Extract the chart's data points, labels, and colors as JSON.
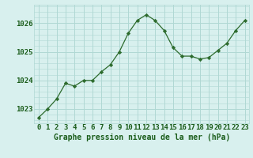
{
  "x": [
    0,
    1,
    2,
    3,
    4,
    5,
    6,
    7,
    8,
    9,
    10,
    11,
    12,
    13,
    14,
    15,
    16,
    17,
    18,
    19,
    20,
    21,
    22,
    23
  ],
  "y": [
    1022.7,
    1023.0,
    1023.35,
    1023.9,
    1023.8,
    1024.0,
    1024.0,
    1024.3,
    1024.55,
    1025.0,
    1025.65,
    1026.1,
    1026.3,
    1026.1,
    1025.75,
    1025.15,
    1024.85,
    1024.85,
    1024.75,
    1024.8,
    1025.05,
    1025.3,
    1025.75,
    1026.1
  ],
  "line_color": "#2d6b2d",
  "marker": "D",
  "marker_size": 2.2,
  "bg_color": "#d8f0ee",
  "grid_color": "#b0d8d4",
  "xlabel": "Graphe pression niveau de la mer (hPa)",
  "xlabel_color": "#1a5c1a",
  "xlabel_fontsize": 7.0,
  "tick_color": "#1a5c1a",
  "tick_fontsize": 6.5,
  "ylim": [
    1022.5,
    1026.65
  ],
  "yticks": [
    1023,
    1024,
    1025,
    1026
  ],
  "xticks": [
    0,
    1,
    2,
    3,
    4,
    5,
    6,
    7,
    8,
    9,
    10,
    11,
    12,
    13,
    14,
    15,
    16,
    17,
    18,
    19,
    20,
    21,
    22,
    23
  ]
}
